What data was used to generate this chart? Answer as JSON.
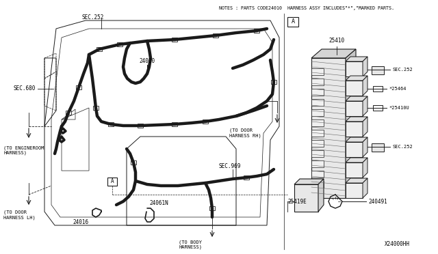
{
  "bg_color": "#f0f0f0",
  "line_color": "#1a1a1a",
  "fig_width": 6.4,
  "fig_height": 3.72,
  "dpi": 100,
  "notes_text": "NOTES : PARTS CODE24010  HARNESS ASSY INCLUDES\"*\",\"MARKED PARTS.",
  "diagram_label": "X24000HH",
  "border_color": "#888888",
  "parts": {
    "SEC252_top": "SEC.252",
    "SEC680": "SEC.680",
    "part24010": "24010",
    "to_engineroom": "(TO ENGINEROOM\nHARNESS)",
    "to_door_rh": "(TO DOOR\nHARNESS RH)",
    "SEC969": "SEC.969",
    "to_door_lh": "(TO DOOR\nHARNESS LH)",
    "part24016": "24016",
    "part24061N": "24061N",
    "to_body": "(TO BODY\nHARNESS)",
    "label_A": "A",
    "part25410": "25410",
    "SEC252_right1": "SEC.252",
    "part25464": "*25464",
    "part25410U": "*25410U",
    "SEC252_right2": "SEC.252",
    "part25419E": "25419E",
    "part240491": "240491"
  }
}
